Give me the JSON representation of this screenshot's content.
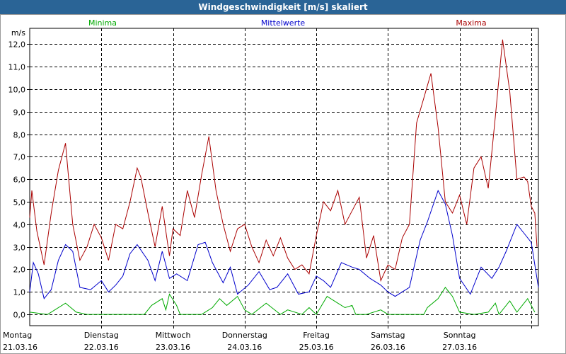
{
  "window": {
    "title": "Windgeschwindigkeit [m/s] skaliert"
  },
  "chart_data": {
    "type": "line",
    "title": "Windgeschwindigkeit [m/s] skaliert",
    "ylabel": "m/s",
    "ylim": [
      -0.5,
      12.7
    ],
    "grid": true,
    "yticks": [
      0,
      1,
      2,
      3,
      4,
      5,
      6,
      7,
      8,
      9,
      10,
      11,
      12
    ],
    "ytick_labels": [
      "0,0",
      "1,0",
      "2,0",
      "3,0",
      "4,0",
      "5,0",
      "6,0",
      "7,0",
      "8,0",
      "9,0",
      "10,0",
      "11,0",
      "12,0"
    ],
    "x_range": [
      0,
      7.1
    ],
    "x_ticks": [
      0,
      1,
      2,
      3,
      4,
      5,
      6,
      7
    ],
    "x_labels": [
      {
        "day": "Montag",
        "date": "21.03.16"
      },
      {
        "day": "Dienstag",
        "date": "22.03.16"
      },
      {
        "day": "Mittwoch",
        "date": "23.03.16"
      },
      {
        "day": "Donnerstag",
        "date": "24.03.16"
      },
      {
        "day": "Freitag",
        "date": "25.03.16"
      },
      {
        "day": "Samstag",
        "date": "26.03.16"
      },
      {
        "day": "Sonntag",
        "date": "27.03.16"
      }
    ],
    "series": [
      {
        "name": "Minima",
        "color": "#00aa00",
        "x": [
          0,
          0.25,
          0.5,
          0.65,
          0.8,
          1.0,
          1.3,
          1.6,
          1.7,
          1.85,
          1.9,
          1.95,
          2.05,
          2.1,
          2.2,
          2.4,
          2.55,
          2.65,
          2.75,
          2.9,
          3.0,
          3.1,
          3.3,
          3.5,
          3.6,
          3.8,
          3.9,
          4.0,
          4.15,
          4.3,
          4.4,
          4.5,
          4.55,
          4.7,
          4.9,
          5.0,
          5.3,
          5.5,
          5.55,
          5.7,
          5.8,
          5.9,
          6.0,
          6.2,
          6.4,
          6.5,
          6.55,
          6.7,
          6.8,
          6.95,
          7.05
        ],
        "values": [
          0.1,
          0.0,
          0.5,
          0.1,
          0.0,
          0.0,
          0.0,
          0.0,
          0.4,
          0.7,
          0.2,
          0.9,
          0.4,
          0.0,
          0.0,
          0.0,
          0.3,
          0.7,
          0.4,
          0.8,
          0.2,
          0.0,
          0.5,
          0.0,
          0.2,
          0.0,
          0.3,
          0.0,
          0.8,
          0.5,
          0.3,
          0.4,
          0.0,
          0.0,
          0.2,
          0.0,
          0.0,
          0.0,
          0.3,
          0.7,
          1.2,
          0.8,
          0.1,
          0.0,
          0.1,
          0.5,
          0.0,
          0.6,
          0.1,
          0.7,
          0.1
        ]
      },
      {
        "name": "Mittelwerte",
        "color": "#0000cc",
        "x": [
          0,
          0.05,
          0.12,
          0.2,
          0.3,
          0.4,
          0.5,
          0.6,
          0.7,
          0.85,
          1.0,
          1.1,
          1.2,
          1.3,
          1.4,
          1.5,
          1.65,
          1.75,
          1.85,
          1.95,
          2.05,
          2.2,
          2.35,
          2.45,
          2.55,
          2.7,
          2.8,
          2.9,
          3.05,
          3.2,
          3.35,
          3.45,
          3.6,
          3.75,
          3.9,
          4.0,
          4.1,
          4.2,
          4.35,
          4.5,
          4.6,
          4.75,
          4.9,
          5.0,
          5.1,
          5.3,
          5.45,
          5.55,
          5.7,
          5.8,
          5.9,
          6.0,
          6.15,
          6.3,
          6.45,
          6.55,
          6.65,
          6.8,
          6.9,
          7.0,
          7.1
        ],
        "values": [
          1.0,
          2.3,
          1.8,
          0.7,
          1.1,
          2.4,
          3.1,
          2.8,
          1.2,
          1.1,
          1.5,
          1.0,
          1.3,
          1.7,
          2.7,
          3.1,
          2.4,
          1.5,
          2.8,
          1.6,
          1.8,
          1.5,
          3.1,
          3.2,
          2.3,
          1.4,
          2.1,
          0.9,
          1.3,
          1.9,
          1.1,
          1.2,
          1.8,
          0.9,
          1.0,
          1.7,
          1.5,
          1.2,
          2.3,
          2.1,
          2.0,
          1.6,
          1.3,
          1.0,
          0.8,
          1.2,
          3.3,
          4.1,
          5.5,
          4.9,
          3.5,
          1.6,
          0.9,
          2.1,
          1.6,
          2.1,
          2.8,
          4.0,
          3.6,
          3.2,
          1.2
        ]
      },
      {
        "name": "Maxima",
        "color": "#aa0000",
        "x": [
          0,
          0.03,
          0.1,
          0.2,
          0.3,
          0.4,
          0.5,
          0.6,
          0.7,
          0.8,
          0.9,
          1.0,
          1.1,
          1.2,
          1.3,
          1.4,
          1.5,
          1.55,
          1.65,
          1.75,
          1.85,
          1.95,
          2.0,
          2.1,
          2.2,
          2.3,
          2.4,
          2.5,
          2.6,
          2.7,
          2.8,
          2.9,
          3.0,
          3.1,
          3.2,
          3.3,
          3.4,
          3.5,
          3.6,
          3.7,
          3.8,
          3.9,
          4.0,
          4.1,
          4.2,
          4.3,
          4.4,
          4.5,
          4.6,
          4.7,
          4.8,
          4.9,
          5.0,
          5.1,
          5.2,
          5.3,
          5.4,
          5.5,
          5.6,
          5.7,
          5.8,
          5.9,
          6.0,
          6.1,
          6.2,
          6.3,
          6.4,
          6.5,
          6.6,
          6.7,
          6.8,
          6.9,
          6.95,
          7.0,
          7.05,
          7.08
        ],
        "values": [
          4.3,
          5.5,
          3.7,
          2.2,
          4.5,
          6.4,
          7.6,
          4.0,
          2.4,
          3.0,
          4.0,
          3.4,
          2.4,
          4.0,
          3.8,
          5.0,
          6.5,
          6.1,
          4.5,
          3.0,
          4.8,
          2.6,
          3.8,
          3.5,
          5.5,
          4.3,
          6.2,
          7.9,
          5.5,
          4.0,
          2.8,
          3.8,
          4.0,
          3.0,
          2.3,
          3.3,
          2.6,
          3.4,
          2.5,
          2.0,
          2.2,
          1.8,
          3.5,
          5.0,
          4.6,
          5.5,
          4.0,
          4.6,
          5.2,
          2.5,
          3.5,
          1.5,
          2.2,
          2.0,
          3.4,
          4.0,
          8.5,
          9.6,
          10.7,
          8.3,
          5.0,
          4.5,
          5.3,
          4.0,
          6.5,
          7.0,
          5.6,
          8.8,
          12.2,
          9.9,
          6.0,
          6.1,
          5.9,
          4.8,
          4.5,
          3.0
        ]
      }
    ]
  }
}
